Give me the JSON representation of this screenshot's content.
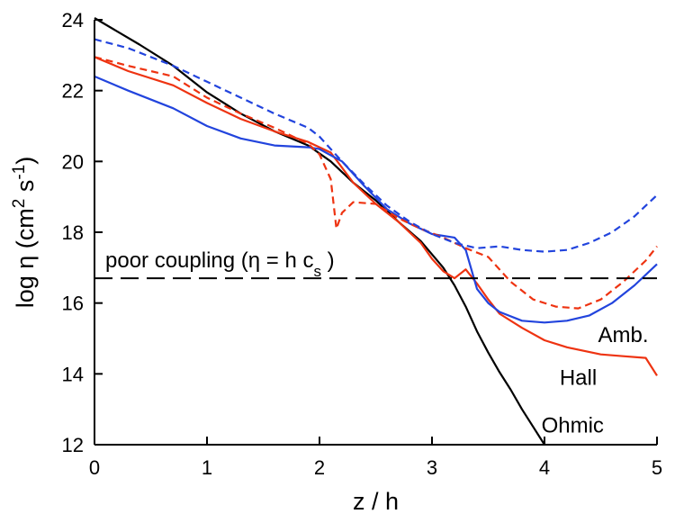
{
  "chart_data": {
    "type": "line",
    "xlabel": "z / h",
    "ylabel": {
      "main": "log η (cm",
      "sup1": "2",
      "mid": " s",
      "sup2": "-1",
      "end": ")"
    },
    "xlim": [
      0,
      5
    ],
    "ylim": [
      12,
      24
    ],
    "xticks": [
      "0",
      "1",
      "2",
      "3",
      "4",
      "5"
    ],
    "yticks": [
      "12",
      "14",
      "16",
      "18",
      "20",
      "22",
      "24"
    ],
    "grid": false,
    "threshold": {
      "y": 16.7,
      "label_main": "poor coupling (η = h c",
      "label_sub": "s",
      "label_end": " )"
    },
    "colors": {
      "black": "#000000",
      "red": "#ee3311",
      "blue": "#2244dd"
    },
    "annotations": [
      {
        "text": "Amb.",
        "x": 4.7,
        "y": 15.1
      },
      {
        "text": "Hall",
        "x": 4.3,
        "y": 13.9
      },
      {
        "text": "Ohmic",
        "x": 4.25,
        "y": 12.55
      }
    ],
    "series": [
      {
        "color": "black",
        "dash": false,
        "x": [
          0,
          0.4,
          0.7,
          1.0,
          1.3,
          1.6,
          1.9,
          2.1,
          2.3,
          2.5,
          2.7,
          2.9,
          3.1,
          3.2,
          3.3,
          3.4,
          3.5,
          3.6,
          3.7,
          3.8,
          3.9,
          4.0
        ],
        "y": [
          24.05,
          23.3,
          22.7,
          21.95,
          21.35,
          20.85,
          20.45,
          20.0,
          19.4,
          18.9,
          18.3,
          17.75,
          17.0,
          16.5,
          15.9,
          15.2,
          14.6,
          14.05,
          13.55,
          13.0,
          12.5,
          12.0
        ]
      },
      {
        "color": "red",
        "dash": false,
        "x": [
          0,
          0.3,
          0.7,
          1.0,
          1.3,
          1.6,
          1.9,
          2.1,
          2.3,
          2.5,
          2.7,
          2.9,
          3.0,
          3.1,
          3.2,
          3.3,
          3.4,
          3.5,
          3.6,
          3.8,
          4.0,
          4.2,
          4.5,
          4.7,
          4.9,
          5.0
        ],
        "y": [
          22.95,
          22.55,
          22.15,
          21.65,
          21.2,
          20.85,
          20.55,
          20.25,
          19.4,
          18.8,
          18.3,
          17.7,
          17.25,
          16.9,
          16.7,
          16.95,
          16.55,
          16.1,
          15.7,
          15.3,
          14.95,
          14.75,
          14.55,
          14.5,
          14.45,
          13.95
        ]
      },
      {
        "color": "blue",
        "dash": false,
        "x": [
          0,
          0.3,
          0.7,
          1.0,
          1.3,
          1.6,
          1.9,
          2.0,
          2.2,
          2.4,
          2.6,
          2.8,
          3.0,
          3.2,
          3.3,
          3.4,
          3.5,
          3.6,
          3.8,
          4.0,
          4.2,
          4.4,
          4.6,
          4.8,
          5.0
        ],
        "y": [
          22.4,
          22.0,
          21.5,
          21.0,
          20.65,
          20.45,
          20.4,
          20.35,
          20.0,
          19.3,
          18.65,
          18.25,
          17.95,
          17.85,
          17.5,
          16.4,
          16.0,
          15.75,
          15.5,
          15.45,
          15.5,
          15.65,
          16.0,
          16.5,
          17.1
        ]
      },
      {
        "color": "red",
        "dash": true,
        "x": [
          0,
          0.3,
          0.7,
          1.0,
          1.3,
          1.6,
          1.9,
          2.0,
          2.1,
          2.15,
          2.2,
          2.3,
          2.5,
          2.7,
          2.9,
          3.1,
          3.3,
          3.5,
          3.7,
          3.9,
          4.1,
          4.3,
          4.5,
          4.7,
          4.9,
          5.0
        ],
        "y": [
          22.95,
          22.7,
          22.4,
          21.8,
          21.35,
          20.95,
          20.5,
          20.2,
          19.5,
          18.1,
          18.55,
          18.85,
          18.8,
          18.4,
          18.1,
          17.85,
          17.55,
          17.3,
          16.6,
          16.1,
          15.9,
          15.85,
          16.1,
          16.6,
          17.2,
          17.6
        ]
      },
      {
        "color": "blue",
        "dash": true,
        "x": [
          0,
          0.3,
          0.7,
          1.0,
          1.3,
          1.6,
          1.9,
          2.0,
          2.2,
          2.4,
          2.6,
          2.8,
          3.0,
          3.2,
          3.4,
          3.6,
          3.8,
          4.0,
          4.2,
          4.4,
          4.6,
          4.8,
          5.0
        ],
        "y": [
          23.45,
          23.2,
          22.7,
          22.25,
          21.8,
          21.35,
          20.95,
          20.7,
          20.0,
          19.35,
          18.75,
          18.3,
          17.95,
          17.7,
          17.55,
          17.6,
          17.5,
          17.45,
          17.5,
          17.7,
          18.0,
          18.45,
          19.05
        ]
      }
    ]
  }
}
